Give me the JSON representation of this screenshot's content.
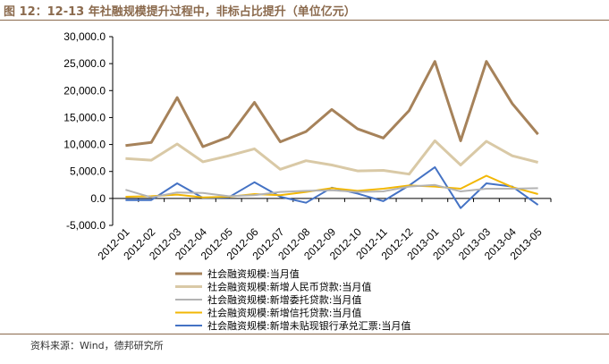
{
  "title": "图 12：12-13 年社融规模提升过程中，非标占比提升（单位亿元）",
  "source": "资料来源：Wind，德邦研究所",
  "chart_data": {
    "type": "line",
    "ylim": [
      -5000,
      30000
    ],
    "yticks": [
      "30,000.0",
      "25,000.0",
      "20,000.0",
      "15,000.0",
      "10,000.0",
      "5,000.0",
      "0.0",
      "-5,000.0"
    ],
    "ytick_values": [
      30000,
      25000,
      20000,
      15000,
      10000,
      5000,
      0,
      -5000
    ],
    "categories": [
      "2012-01",
      "2012-02",
      "2012-03",
      "2012-04",
      "2012-05",
      "2012-06",
      "2012-07",
      "2012-08",
      "2012-09",
      "2012-10",
      "2012-11",
      "2012-12",
      "2013-01",
      "2013-02",
      "2013-03",
      "2013-04",
      "2013-05"
    ],
    "legend_position": "bottom",
    "grid": false,
    "series": [
      {
        "name": "社会融资规模:当月值",
        "color": "#A6825A",
        "values": [
          9800,
          10400,
          18700,
          9600,
          11400,
          17800,
          10500,
          12400,
          16500,
          12900,
          11200,
          16300,
          25400,
          10700,
          25400,
          17600,
          11900
        ]
      },
      {
        "name": "社会融资规模:新增人民币贷款:当月值",
        "color": "#D9C9A6",
        "values": [
          7400,
          7100,
          10100,
          6800,
          7900,
          9200,
          5400,
          7000,
          6200,
          5100,
          5200,
          4500,
          10700,
          6200,
          10600,
          7900,
          6700
        ]
      },
      {
        "name": "社会融资规模:新增委托贷款:当月值",
        "color": "#B3B3B3",
        "values": [
          1600,
          200,
          1100,
          1000,
          400,
          600,
          1200,
          1400,
          1500,
          1200,
          1300,
          2200,
          2500,
          1300,
          1800,
          1800,
          1900
        ]
      },
      {
        "name": "社会融资规模:新增信托贷款:当月值",
        "color": "#F2B705",
        "values": [
          300,
          400,
          700,
          200,
          300,
          800,
          600,
          1200,
          1900,
          1400,
          1800,
          2400,
          2200,
          1800,
          4200,
          2100,
          800
        ]
      },
      {
        "name": "社会融资规模:新增未贴现银行承兑汇票:当月值",
        "color": "#4472C4",
        "values": [
          -300,
          -300,
          2800,
          100,
          200,
          3000,
          300,
          -800,
          2000,
          900,
          -500,
          2400,
          5800,
          -1800,
          2800,
          2200,
          -1200
        ]
      }
    ]
  }
}
